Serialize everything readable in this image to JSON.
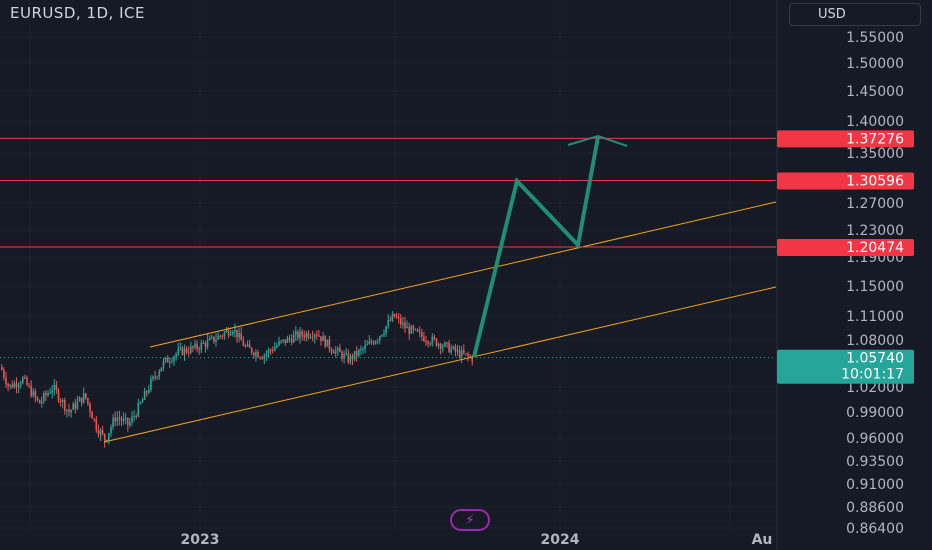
{
  "header": {
    "symbol": "EURUSD, 1D, ICE",
    "currency": "USD"
  },
  "colors": {
    "background": "#161a25",
    "up": "#26a69a",
    "down": "#ef5350",
    "channel": "#f7a21a",
    "level": "#f23645",
    "arrow": "#1e8e74"
  },
  "chart_data": {
    "type": "candlestick",
    "y_ticks": [
      "1.55000",
      "1.50000",
      "1.45000",
      "1.40000",
      "1.35000",
      "1.27000",
      "1.23000",
      "1.19000",
      "1.15000",
      "1.11000",
      "1.08000",
      "1.02000",
      "0.99000",
      "0.96000",
      "0.93500",
      "0.91000",
      "0.88600",
      "0.86400"
    ],
    "x_ticks": [
      "2023",
      "2024",
      "Au"
    ],
    "levels": [
      {
        "value": "1.37276"
      },
      {
        "value": "1.30596"
      },
      {
        "value": "1.20474"
      }
    ],
    "current_price": "1.05740",
    "countdown": "10:01:17",
    "icon": "lightning-icon"
  }
}
